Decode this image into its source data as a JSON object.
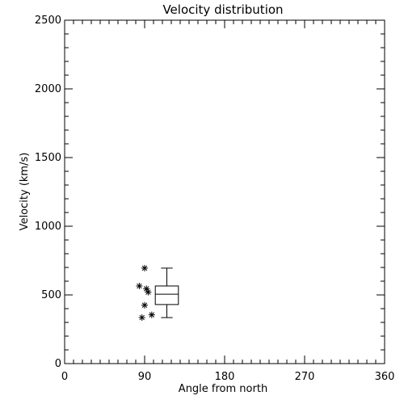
{
  "chart_data": {
    "type": "box",
    "title": "Velocity distribution",
    "xlabel": "Angle from north",
    "ylabel": "Velocity (km/s)",
    "xlim": [
      0,
      360
    ],
    "ylim": [
      0,
      2500
    ],
    "xticks": [
      0,
      90,
      180,
      270,
      360
    ],
    "xtick_labels": [
      "0",
      "90",
      "180",
      "270",
      "360"
    ],
    "yticks": [
      0,
      500,
      1000,
      1500,
      2000,
      2500
    ],
    "ytick_labels": [
      "0",
      "500",
      "1000",
      "1500",
      "2000",
      "2500"
    ],
    "x_minor_step": 10,
    "y_minor_step": 100,
    "grid": false,
    "box": {
      "x_left": 102,
      "x_right": 128,
      "whisker_low": 335,
      "q1": 430,
      "median": 505,
      "q3": 565,
      "whisker_high": 695
    },
    "points": [
      {
        "x": 90,
        "y": 695
      },
      {
        "x": 84,
        "y": 565
      },
      {
        "x": 92,
        "y": 545
      },
      {
        "x": 94,
        "y": 520
      },
      {
        "x": 90,
        "y": 425
      },
      {
        "x": 98,
        "y": 355
      },
      {
        "x": 87,
        "y": 335
      }
    ],
    "colors": {
      "axes": "#000000",
      "box": "#000000",
      "points": "#000000",
      "background": "#ffffff"
    }
  }
}
